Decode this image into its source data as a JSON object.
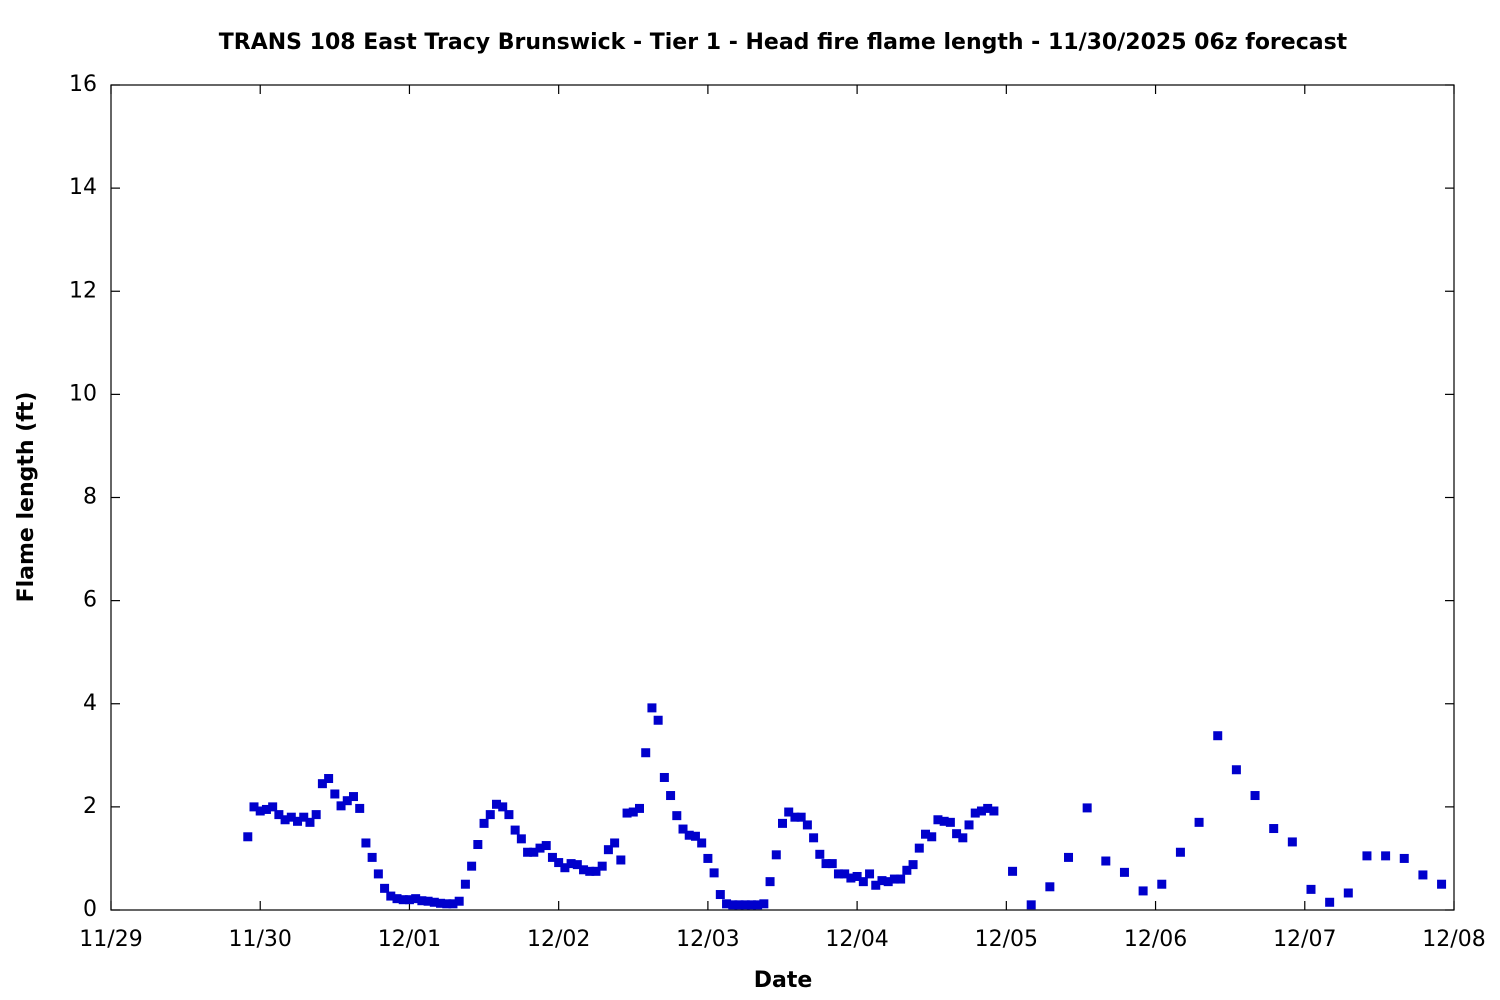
{
  "chart_data": {
    "type": "scatter",
    "title": "TRANS 108 East Tracy Brunswick - Tier 1 - Head fire flame length - 11/30/2025 06z forecast",
    "x_label": "Date",
    "y_label": "Flame length (ft)",
    "color": "#0000cc",
    "xlim": [
      0,
      216
    ],
    "ylim": [
      0,
      16
    ],
    "xticks": [
      {
        "value": 0,
        "label": "11/29"
      },
      {
        "value": 24,
        "label": "11/30"
      },
      {
        "value": 48,
        "label": "12/01"
      },
      {
        "value": 72,
        "label": "12/02"
      },
      {
        "value": 96,
        "label": "12/03"
      },
      {
        "value": 120,
        "label": "12/04"
      },
      {
        "value": 144,
        "label": "12/05"
      },
      {
        "value": 168,
        "label": "12/06"
      },
      {
        "value": 192,
        "label": "12/07"
      },
      {
        "value": 216,
        "label": "12/08"
      }
    ],
    "yticks": [
      0,
      2,
      4,
      6,
      8,
      10,
      12,
      14,
      16
    ],
    "x": [
      22,
      23,
      24,
      25,
      26,
      27,
      28,
      29,
      30,
      31,
      32,
      33,
      34,
      35,
      36,
      37,
      38,
      39,
      40,
      41,
      42,
      43,
      44,
      45,
      46,
      47,
      48,
      49,
      50,
      51,
      52,
      53,
      54,
      55,
      56,
      57,
      58,
      59,
      60,
      61,
      62,
      63,
      64,
      65,
      66,
      67,
      68,
      69,
      70,
      71,
      72,
      73,
      74,
      75,
      76,
      77,
      78,
      79,
      80,
      81,
      82,
      83,
      84,
      85,
      86,
      87,
      88,
      89,
      90,
      91,
      92,
      93,
      94,
      95,
      96,
      97,
      98,
      99,
      100,
      101,
      102,
      103,
      104,
      105,
      106,
      107,
      108,
      109,
      110,
      111,
      112,
      113,
      114,
      115,
      116,
      117,
      118,
      119,
      120,
      121,
      122,
      123,
      124,
      125,
      126,
      127,
      128,
      129,
      130,
      131,
      132,
      133,
      134,
      135,
      136,
      137,
      138,
      139,
      140,
      141,
      142,
      145,
      148,
      151,
      154,
      157,
      160,
      163,
      166,
      169,
      172,
      175,
      178,
      181,
      184,
      187,
      190,
      193,
      196,
      199,
      202,
      205,
      208,
      211,
      214
    ],
    "values": [
      1.42,
      2.0,
      1.92,
      1.95,
      2.0,
      1.85,
      1.75,
      1.8,
      1.72,
      1.8,
      1.7,
      1.85,
      2.45,
      2.55,
      2.25,
      2.02,
      2.12,
      2.2,
      1.97,
      1.3,
      1.02,
      0.7,
      0.42,
      0.27,
      0.22,
      0.2,
      0.2,
      0.22,
      0.18,
      0.17,
      0.15,
      0.13,
      0.12,
      0.12,
      0.17,
      0.5,
      0.85,
      1.27,
      1.68,
      1.85,
      2.05,
      2.0,
      1.85,
      1.55,
      1.38,
      1.12,
      1.12,
      1.2,
      1.25,
      1.02,
      0.92,
      0.82,
      0.9,
      0.88,
      0.78,
      0.75,
      0.75,
      0.85,
      1.17,
      1.3,
      0.97,
      1.88,
      1.9,
      1.97,
      3.05,
      3.92,
      3.68,
      2.57,
      2.22,
      1.83,
      1.57,
      1.45,
      1.43,
      1.3,
      1.0,
      0.72,
      0.3,
      0.12,
      0.1,
      0.1,
      0.1,
      0.1,
      0.1,
      0.12,
      0.55,
      1.07,
      1.68,
      1.9,
      1.8,
      1.8,
      1.65,
      1.4,
      1.08,
      0.9,
      0.9,
      0.7,
      0.7,
      0.62,
      0.65,
      0.55,
      0.7,
      0.48,
      0.57,
      0.55,
      0.6,
      0.6,
      0.77,
      0.88,
      1.2,
      1.47,
      1.42,
      1.75,
      1.72,
      1.7,
      1.48,
      1.4,
      1.65,
      1.88,
      1.92,
      1.97,
      1.92,
      0.75,
      0.1,
      0.45,
      1.02,
      1.98,
      0.95,
      0.73,
      0.37,
      0.5,
      1.12,
      1.7,
      3.38,
      2.72,
      2.22,
      1.58,
      1.32,
      0.4,
      0.15,
      0.33,
      1.05,
      1.05,
      1.0,
      0.68,
      0.5
    ]
  }
}
